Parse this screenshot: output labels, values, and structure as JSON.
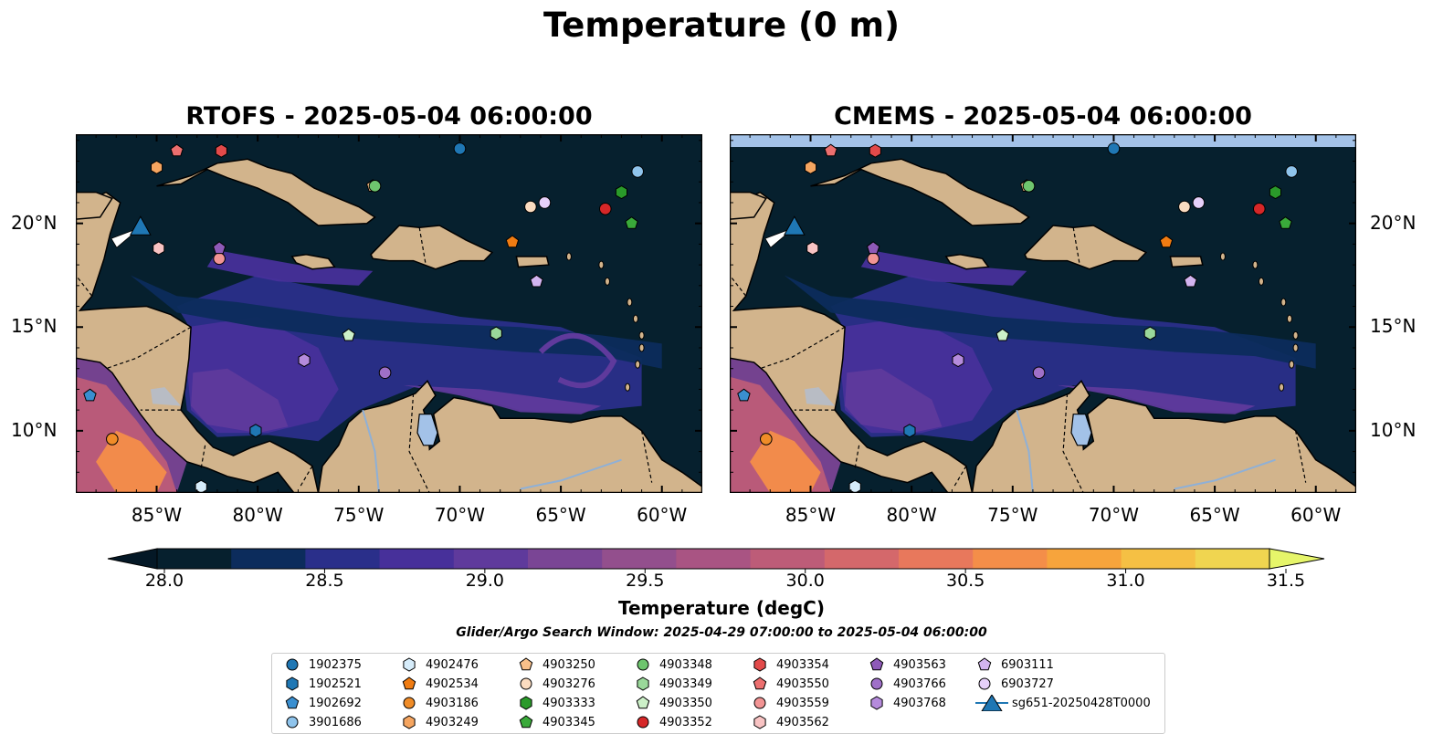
{
  "title": "Temperature (0 m)",
  "panels": [
    {
      "title": "RTOFS - 2025-05-04 06:00:00"
    },
    {
      "title": "CMEMS - 2025-05-04 06:00:00"
    }
  ],
  "axes": {
    "lon_ticks": [
      "85°W",
      "80°W",
      "75°W",
      "70°W",
      "65°W",
      "60°W"
    ],
    "lat_ticks": [
      "20°N",
      "15°N",
      "10°N"
    ]
  },
  "colorbar": {
    "label": "Temperature (degC)",
    "ticks": [
      "28.0",
      "28.5",
      "29.0",
      "29.5",
      "30.0",
      "30.5",
      "31.0",
      "31.5"
    ],
    "range": [
      28.0,
      31.5
    ],
    "colors": [
      "#06202e",
      "#0c2c5c",
      "#2a2f8a",
      "#47309a",
      "#5f3a9c",
      "#7a4595",
      "#934f8d",
      "#a95483",
      "#bd5c78",
      "#d4686b",
      "#e8785c",
      "#f48e49",
      "#f7a43c",
      "#f5c044",
      "#f0d550"
    ],
    "extend_under": "#041826",
    "extend_over": "#e6f56a"
  },
  "search_window": "Glider/Argo Search Window: 2025-04-29 07:00:00 to 2025-05-04 06:00:00",
  "legend": {
    "columns": [
      [
        {
          "label": "1902375",
          "marker": "circle",
          "color": "#1f77b4"
        },
        {
          "label": "1902521",
          "marker": "hexagon",
          "color": "#1f77b4"
        },
        {
          "label": "1902692",
          "marker": "pentagon",
          "color": "#3a8fd0"
        },
        {
          "label": "3901686",
          "marker": "circle",
          "color": "#8fc4ec"
        }
      ],
      [
        {
          "label": "4902476",
          "marker": "hexagon",
          "color": "#d6ecfa"
        },
        {
          "label": "4902534",
          "marker": "pentagon",
          "color": "#f07c12"
        },
        {
          "label": "4903186",
          "marker": "circle",
          "color": "#f08c28"
        },
        {
          "label": "4903249",
          "marker": "hexagon",
          "color": "#f5a560"
        }
      ],
      [
        {
          "label": "4903250",
          "marker": "pentagon",
          "color": "#f8c08a"
        },
        {
          "label": "4903276",
          "marker": "circle",
          "color": "#fbdcc0"
        },
        {
          "label": "4903333",
          "marker": "hexagon",
          "color": "#2a9a2a"
        },
        {
          "label": "4903345",
          "marker": "pentagon",
          "color": "#3aaa3a"
        }
      ],
      [
        {
          "label": "4903348",
          "marker": "circle",
          "color": "#6ec56e"
        },
        {
          "label": "4903349",
          "marker": "hexagon",
          "color": "#9ad89a"
        },
        {
          "label": "4903350",
          "marker": "pentagon",
          "color": "#ccf0c8"
        },
        {
          "label": "4903352",
          "marker": "circle",
          "color": "#d62728"
        }
      ],
      [
        {
          "label": "4903354",
          "marker": "hexagon",
          "color": "#e24a4a"
        },
        {
          "label": "4903550",
          "marker": "pentagon",
          "color": "#ec6f6f"
        },
        {
          "label": "4903559",
          "marker": "circle",
          "color": "#f29494"
        },
        {
          "label": "4903562",
          "marker": "hexagon",
          "color": "#f8c3c3"
        }
      ],
      [
        {
          "label": "4903563",
          "marker": "pentagon",
          "color": "#8e5ab8"
        },
        {
          "label": "4903766",
          "marker": "circle",
          "color": "#9f70c8"
        },
        {
          "label": "4903768",
          "marker": "hexagon",
          "color": "#b58bdc"
        }
      ],
      [
        {
          "label": "6903111",
          "marker": "pentagon",
          "color": "#d2b4f0"
        },
        {
          "label": "6903727",
          "marker": "circle",
          "color": "#e6d0fa"
        },
        {
          "label": "sg651-20250428T0000",
          "marker": "triangle",
          "color": "#1f77b4"
        }
      ]
    ]
  },
  "map_colors": {
    "ocean": "#06202e",
    "land": "#d2b48c",
    "lake": "#a3c2e8",
    "glider_track": "#ffffff",
    "cmems_nodata_band": "#a3c2e8"
  },
  "floats": [
    {
      "id": "1902375",
      "lon": -70.0,
      "lat": 23.6
    },
    {
      "id": "1902521",
      "lon": -80.1,
      "lat": 10.0
    },
    {
      "id": "1902692",
      "lon": -88.3,
      "lat": 11.7
    },
    {
      "id": "3901686",
      "lon": -61.2,
      "lat": 22.5
    },
    {
      "id": "4902476",
      "lon": -82.8,
      "lat": 7.3
    },
    {
      "id": "4902534",
      "lon": -67.4,
      "lat": 19.1
    },
    {
      "id": "4903186",
      "lon": -87.2,
      "lat": 9.6
    },
    {
      "id": "4903249",
      "lon": -85.0,
      "lat": 22.7
    },
    {
      "id": "4903250",
      "lon": -74.3,
      "lat": 21.8
    },
    {
      "id": "4903276",
      "lon": -66.5,
      "lat": 20.8
    },
    {
      "id": "4903333",
      "lon": -62.0,
      "lat": 21.5
    },
    {
      "id": "4903345",
      "lon": -61.5,
      "lat": 20.0
    },
    {
      "id": "4903348",
      "lon": -74.2,
      "lat": 21.8
    },
    {
      "id": "4903349",
      "lon": -68.2,
      "lat": 14.7
    },
    {
      "id": "4903350",
      "lon": -75.5,
      "lat": 14.6
    },
    {
      "id": "4903352",
      "lon": -62.8,
      "lat": 20.7
    },
    {
      "id": "4903354",
      "lon": -81.8,
      "lat": 23.5
    },
    {
      "id": "4903550",
      "lon": -84.0,
      "lat": 23.5
    },
    {
      "id": "4903559",
      "lon": -81.9,
      "lat": 18.3
    },
    {
      "id": "4903562",
      "lon": -84.9,
      "lat": 18.8
    },
    {
      "id": "4903563",
      "lon": -81.9,
      "lat": 18.8
    },
    {
      "id": "4903766",
      "lon": -73.7,
      "lat": 12.8
    },
    {
      "id": "4903768",
      "lon": -77.7,
      "lat": 13.4
    },
    {
      "id": "6903111",
      "lon": -66.2,
      "lat": 17.2
    },
    {
      "id": "6903727",
      "lon": -65.8,
      "lat": 21.0
    }
  ],
  "glider": {
    "id": "sg651-20250428T0000",
    "lon": -85.8,
    "lat": 19.8
  }
}
